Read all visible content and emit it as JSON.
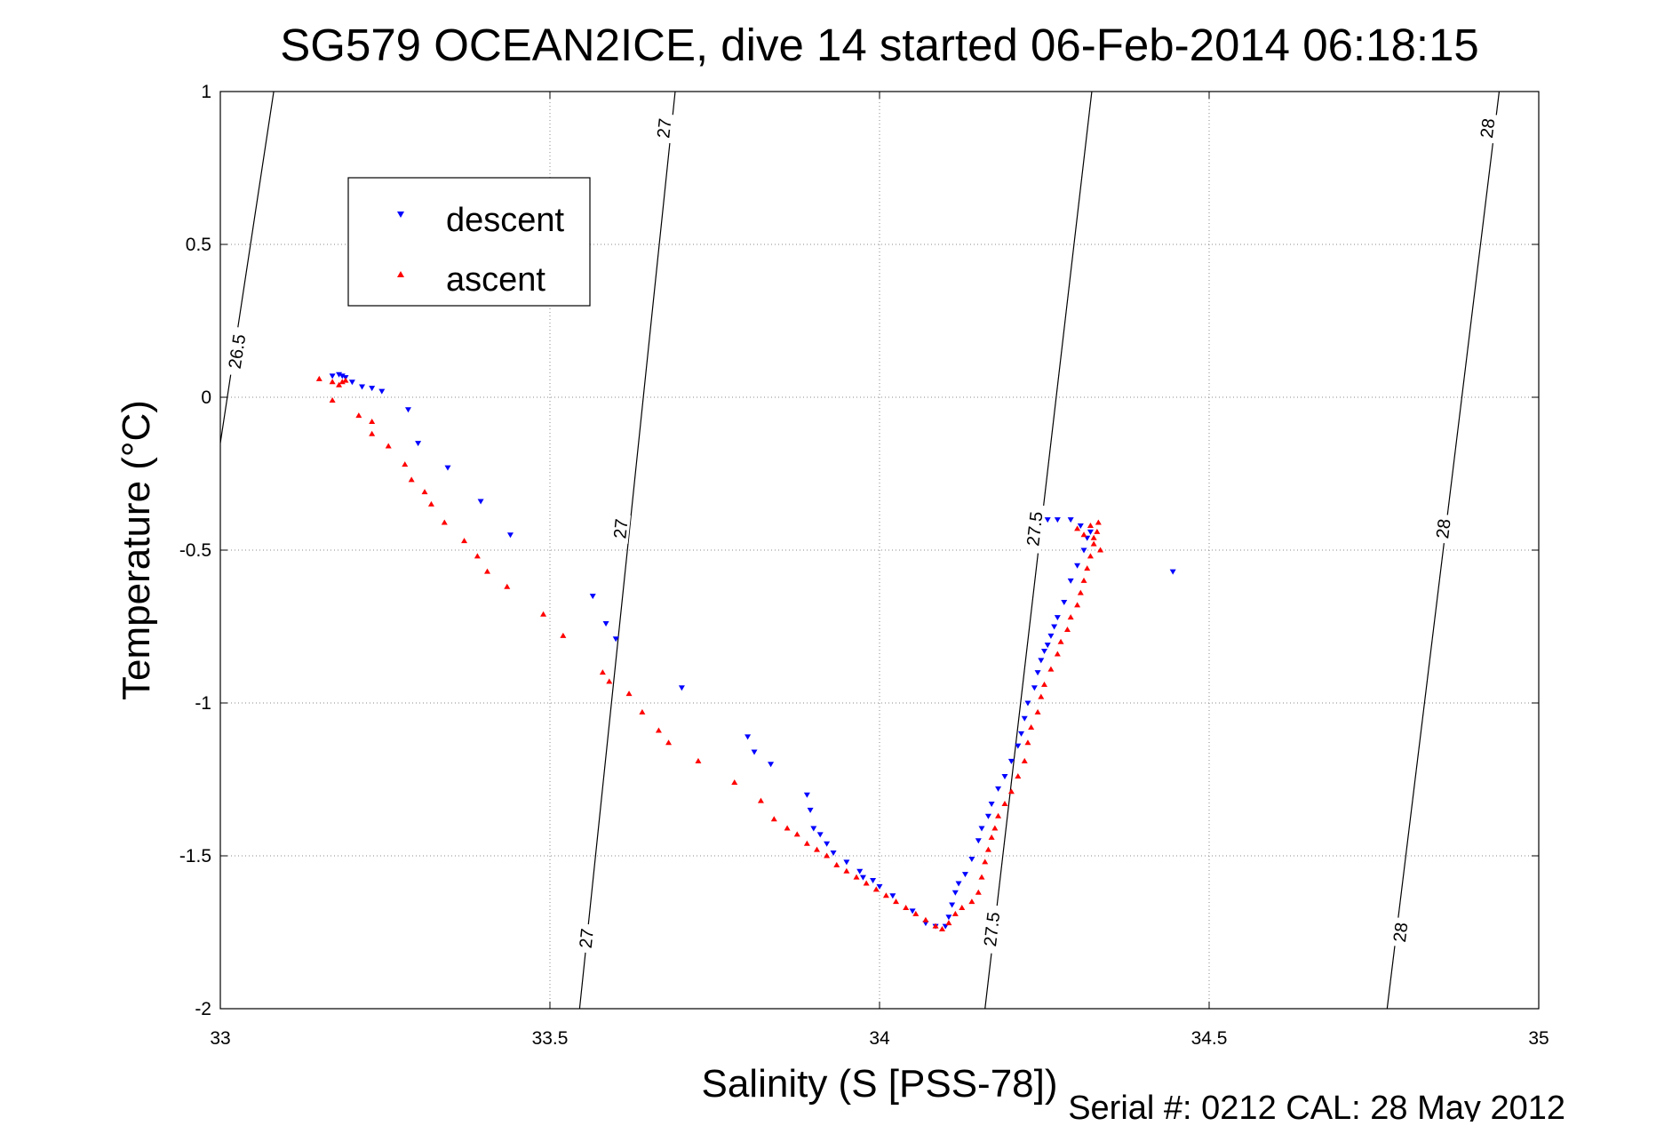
{
  "chart_data": {
    "type": "scatter",
    "title": "SG579 OCEAN2ICE, dive 14 started 06-Feb-2014 06:18:15",
    "xlabel": "Salinity (S [PSS-78])",
    "ylabel": "Temperature (°C)",
    "footer": "Serial #: 0212  CAL: 28 May 2012",
    "xlim": [
      33,
      35
    ],
    "ylim": [
      -2,
      1
    ],
    "xticks": [
      33,
      33.5,
      34,
      34.5,
      35
    ],
    "xtick_labels": [
      "33",
      "33.5",
      "34",
      "34.5",
      "35"
    ],
    "yticks": [
      -2,
      -1.5,
      -1,
      -0.5,
      0,
      0.5,
      1
    ],
    "ytick_labels": [
      "-2",
      "-1.5",
      "-1",
      "-0.5",
      "0",
      "0.5",
      "1"
    ],
    "grid": true,
    "grid_style": "dotted",
    "legend": {
      "placement": "top-left"
    },
    "colors": {
      "descent": "#0000ff",
      "ascent": "#ff0000",
      "contour": "#000000"
    },
    "contours": [
      {
        "level": "26.5",
        "points": [
          [
            33.0,
            -0.15
          ],
          [
            33.081,
            1.0
          ]
        ],
        "labels": [
          {
            "x": 33.025,
            "y": 0.15,
            "text": "26.5"
          }
        ]
      },
      {
        "level": "27",
        "points": [
          [
            33.545,
            -2.0
          ],
          [
            33.69,
            1.0
          ]
        ],
        "labels": [
          {
            "x": 33.555,
            "y": -1.77,
            "text": "27"
          },
          {
            "x": 33.607,
            "y": -0.43,
            "text": "27"
          },
          {
            "x": 33.673,
            "y": 0.88,
            "text": "27"
          }
        ]
      },
      {
        "level": "27.5",
        "points": [
          [
            34.16,
            -2.0
          ],
          [
            34.322,
            1.0
          ]
        ],
        "labels": [
          {
            "x": 34.17,
            "y": -1.74,
            "text": "27.5"
          },
          {
            "x": 34.235,
            "y": -0.43,
            "text": "27.5"
          }
        ]
      },
      {
        "level": "28",
        "points": [
          [
            34.77,
            -2.0
          ],
          [
            34.94,
            1.0
          ]
        ],
        "labels": [
          {
            "x": 34.79,
            "y": -1.75,
            "text": "28"
          },
          {
            "x": 34.855,
            "y": -0.43,
            "text": "28"
          },
          {
            "x": 34.922,
            "y": 0.88,
            "text": "28"
          }
        ]
      }
    ],
    "series": [
      {
        "name": "descent",
        "marker": "triangle-down",
        "color": "#0000ff",
        "points": [
          [
            33.17,
            0.07
          ],
          [
            33.18,
            0.075
          ],
          [
            33.185,
            0.07
          ],
          [
            33.19,
            0.065
          ],
          [
            33.2,
            0.05
          ],
          [
            33.215,
            0.035
          ],
          [
            33.23,
            0.03
          ],
          [
            33.245,
            0.02
          ],
          [
            33.285,
            -0.04
          ],
          [
            33.3,
            -0.15
          ],
          [
            33.345,
            -0.23
          ],
          [
            33.395,
            -0.34
          ],
          [
            33.44,
            -0.45
          ],
          [
            33.565,
            -0.65
          ],
          [
            33.585,
            -0.74
          ],
          [
            33.6,
            -0.79
          ],
          [
            33.7,
            -0.95
          ],
          [
            33.8,
            -1.11
          ],
          [
            33.81,
            -1.16
          ],
          [
            33.835,
            -1.2
          ],
          [
            33.89,
            -1.3
          ],
          [
            33.895,
            -1.35
          ],
          [
            33.9,
            -1.41
          ],
          [
            33.91,
            -1.43
          ],
          [
            33.92,
            -1.46
          ],
          [
            33.93,
            -1.49
          ],
          [
            33.95,
            -1.52
          ],
          [
            33.97,
            -1.55
          ],
          [
            33.975,
            -1.57
          ],
          [
            33.99,
            -1.58
          ],
          [
            34.0,
            -1.6
          ],
          [
            34.02,
            -1.63
          ],
          [
            34.05,
            -1.68
          ],
          [
            34.07,
            -1.72
          ],
          [
            34.085,
            -1.73
          ],
          [
            34.1,
            -1.73
          ],
          [
            34.105,
            -1.7
          ],
          [
            34.11,
            -1.66
          ],
          [
            34.115,
            -1.62
          ],
          [
            34.12,
            -1.59
          ],
          [
            34.13,
            -1.56
          ],
          [
            34.14,
            -1.51
          ],
          [
            34.15,
            -1.45
          ],
          [
            34.155,
            -1.41
          ],
          [
            34.165,
            -1.37
          ],
          [
            34.17,
            -1.33
          ],
          [
            34.18,
            -1.28
          ],
          [
            34.19,
            -1.24
          ],
          [
            34.2,
            -1.19
          ],
          [
            34.21,
            -1.14
          ],
          [
            34.215,
            -1.1
          ],
          [
            34.22,
            -1.05
          ],
          [
            34.225,
            -1.0
          ],
          [
            34.235,
            -0.95
          ],
          [
            34.24,
            -0.9
          ],
          [
            34.245,
            -0.86
          ],
          [
            34.25,
            -0.83
          ],
          [
            34.255,
            -0.81
          ],
          [
            34.26,
            -0.78
          ],
          [
            34.265,
            -0.75
          ],
          [
            34.27,
            -0.72
          ],
          [
            34.28,
            -0.67
          ],
          [
            34.29,
            -0.6
          ],
          [
            34.3,
            -0.55
          ],
          [
            34.31,
            -0.5
          ],
          [
            34.315,
            -0.46
          ],
          [
            34.32,
            -0.44
          ],
          [
            34.305,
            -0.42
          ],
          [
            34.29,
            -0.4
          ],
          [
            34.27,
            -0.4
          ],
          [
            34.255,
            -0.4
          ],
          [
            34.445,
            -0.57
          ]
        ]
      },
      {
        "name": "ascent",
        "marker": "triangle-up",
        "color": "#ff0000",
        "points": [
          [
            33.15,
            0.06
          ],
          [
            33.17,
            0.05
          ],
          [
            33.18,
            0.04
          ],
          [
            33.185,
            0.05
          ],
          [
            33.19,
            0.055
          ],
          [
            33.17,
            -0.01
          ],
          [
            33.21,
            -0.06
          ],
          [
            33.23,
            -0.08
          ],
          [
            33.23,
            -0.12
          ],
          [
            33.255,
            -0.16
          ],
          [
            33.28,
            -0.22
          ],
          [
            33.29,
            -0.27
          ],
          [
            33.31,
            -0.31
          ],
          [
            33.32,
            -0.35
          ],
          [
            33.34,
            -0.41
          ],
          [
            33.37,
            -0.47
          ],
          [
            33.39,
            -0.52
          ],
          [
            33.405,
            -0.57
          ],
          [
            33.435,
            -0.62
          ],
          [
            33.49,
            -0.71
          ],
          [
            33.52,
            -0.78
          ],
          [
            33.58,
            -0.9
          ],
          [
            33.59,
            -0.93
          ],
          [
            33.62,
            -0.97
          ],
          [
            33.64,
            -1.03
          ],
          [
            33.665,
            -1.09
          ],
          [
            33.68,
            -1.13
          ],
          [
            33.725,
            -1.19
          ],
          [
            33.78,
            -1.26
          ],
          [
            33.82,
            -1.32
          ],
          [
            33.84,
            -1.38
          ],
          [
            33.86,
            -1.41
          ],
          [
            33.875,
            -1.43
          ],
          [
            33.89,
            -1.46
          ],
          [
            33.905,
            -1.48
          ],
          [
            33.92,
            -1.5
          ],
          [
            33.935,
            -1.53
          ],
          [
            33.95,
            -1.55
          ],
          [
            33.965,
            -1.57
          ],
          [
            33.98,
            -1.59
          ],
          [
            33.995,
            -1.61
          ],
          [
            34.01,
            -1.63
          ],
          [
            34.025,
            -1.65
          ],
          [
            34.04,
            -1.67
          ],
          [
            34.055,
            -1.69
          ],
          [
            34.07,
            -1.71
          ],
          [
            34.085,
            -1.73
          ],
          [
            34.095,
            -1.74
          ],
          [
            34.105,
            -1.72
          ],
          [
            34.115,
            -1.69
          ],
          [
            34.125,
            -1.67
          ],
          [
            34.14,
            -1.65
          ],
          [
            34.15,
            -1.62
          ],
          [
            34.155,
            -1.57
          ],
          [
            34.16,
            -1.52
          ],
          [
            34.165,
            -1.48
          ],
          [
            34.17,
            -1.44
          ],
          [
            34.175,
            -1.41
          ],
          [
            34.18,
            -1.37
          ],
          [
            34.19,
            -1.33
          ],
          [
            34.2,
            -1.29
          ],
          [
            34.21,
            -1.24
          ],
          [
            34.22,
            -1.19
          ],
          [
            34.225,
            -1.13
          ],
          [
            34.23,
            -1.08
          ],
          [
            34.24,
            -1.03
          ],
          [
            34.245,
            -0.98
          ],
          [
            34.25,
            -0.94
          ],
          [
            34.26,
            -0.89
          ],
          [
            34.27,
            -0.84
          ],
          [
            34.275,
            -0.8
          ],
          [
            34.285,
            -0.76
          ],
          [
            34.29,
            -0.72
          ],
          [
            34.3,
            -0.68
          ],
          [
            34.305,
            -0.64
          ],
          [
            34.31,
            -0.6
          ],
          [
            34.315,
            -0.56
          ],
          [
            34.32,
            -0.52
          ],
          [
            34.325,
            -0.48
          ],
          [
            34.33,
            -0.44
          ],
          [
            34.332,
            -0.41
          ],
          [
            34.325,
            -0.46
          ],
          [
            34.32,
            -0.42
          ],
          [
            34.31,
            -0.45
          ],
          [
            34.3,
            -0.43
          ],
          [
            34.335,
            -0.5
          ]
        ]
      }
    ]
  }
}
